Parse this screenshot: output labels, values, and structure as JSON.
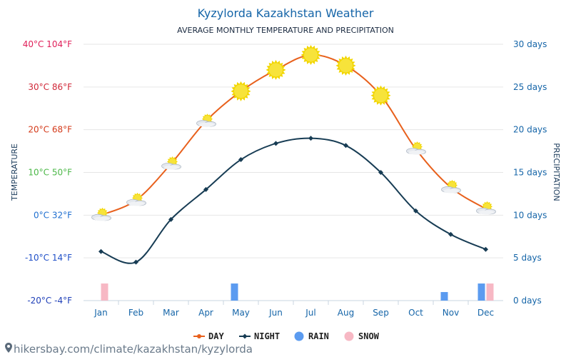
{
  "chart_data": {
    "type": "line",
    "title": "Kyzylorda Kazakhstan Weather",
    "subtitle": "AVERAGE MONTHLY TEMPERATURE AND PRECIPITATION",
    "ylabel_left": "TEMPERATURE",
    "ylabel_right": "PRECIPITATION",
    "categories": [
      "Jan",
      "Feb",
      "Mar",
      "Apr",
      "May",
      "Jun",
      "Jul",
      "Aug",
      "Sep",
      "Oct",
      "Nov",
      "Dec"
    ],
    "left_ticks": [
      {
        "value": 40,
        "label": "40°C 104°F",
        "color": "#e0205a"
      },
      {
        "value": 30,
        "label": "30°C 86°F",
        "color": "#d02838"
      },
      {
        "value": 20,
        "label": "20°C 68°F",
        "color": "#d43a1a"
      },
      {
        "value": 10,
        "label": "10°C 50°F",
        "color": "#4cb848"
      },
      {
        "value": 0,
        "label": "0°C 32°F",
        "color": "#1f6fd0"
      },
      {
        "value": -10,
        "label": "-10°C 14°F",
        "color": "#2050c8"
      },
      {
        "value": -20,
        "label": "-20°C -4°F",
        "color": "#2040b8"
      }
    ],
    "right_ticks": [
      {
        "value": 30,
        "label": "30 days"
      },
      {
        "value": 25,
        "label": "25 days"
      },
      {
        "value": 20,
        "label": "20 days"
      },
      {
        "value": 15,
        "label": "15 days"
      },
      {
        "value": 10,
        "label": "10 days"
      },
      {
        "value": 5,
        "label": "5 days"
      },
      {
        "value": 0,
        "label": "0 days"
      }
    ],
    "ylim_left": [
      -20,
      40
    ],
    "ylim_right": [
      0,
      30
    ],
    "series": [
      {
        "name": "DAY",
        "color": "#e8601c",
        "values": [
          0,
          3.5,
          12,
          22,
          29,
          34,
          37.5,
          35,
          28,
          15.5,
          6.5,
          1.5
        ]
      },
      {
        "name": "NIGHT",
        "color": "#173c54",
        "values": [
          -8.5,
          -11,
          -1,
          6,
          13,
          16.8,
          18,
          16.3,
          10,
          1,
          -4.5,
          -8
        ]
      }
    ],
    "weather_icons": [
      "cloudy-sun",
      "cloudy-sun",
      "cloudy-sun",
      "cloudy-sun",
      "sun",
      "sun",
      "sun",
      "sun",
      "sun",
      "cloudy-sun",
      "cloudy-sun",
      "cloudy-sun"
    ],
    "rain_days": [
      0,
      0,
      0,
      0,
      2,
      0,
      0,
      0,
      0,
      0,
      1,
      2
    ],
    "snow_days": [
      2,
      0,
      0,
      0,
      0,
      0,
      0,
      0,
      0,
      0,
      0,
      2
    ],
    "legend": [
      {
        "label": "DAY",
        "color": "#e8601c",
        "kind": "line"
      },
      {
        "label": "NIGHT",
        "color": "#173c54",
        "kind": "line"
      },
      {
        "label": "RAIN",
        "color": "#5b9bf0",
        "kind": "dot"
      },
      {
        "label": "SNOW",
        "color": "#f7b8c4",
        "kind": "dot"
      }
    ],
    "legend_position": "bottom-center",
    "grid": true
  },
  "footer": {
    "url_text": "hikersbay.com/climate/kazakhstan/kyzylorda",
    "pin_icon": "location-pin-icon"
  },
  "colors": {
    "title": "#1565a8",
    "axis_text": "#1565a8",
    "grid": "#e6e6e6",
    "rain": "#5b9bf0",
    "snow": "#f7b8c4"
  }
}
